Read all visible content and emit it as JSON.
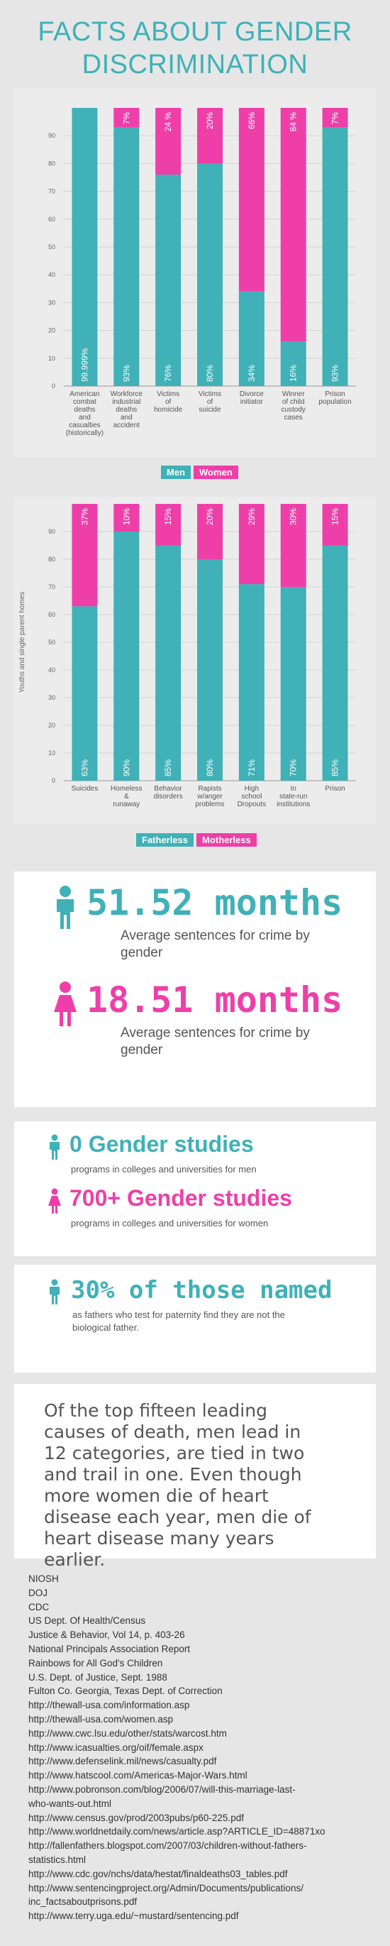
{
  "title_lines": [
    "FACTS ABOUT GENDER",
    "DISCRIMINATION"
  ],
  "colors": {
    "teal": "#3fb1b7",
    "pink": "#ee3fa9",
    "panel": "#ececec"
  },
  "chart_data": [
    {
      "type": "bar",
      "stacked": true,
      "ylim": [
        0,
        100
      ],
      "yticks": [
        0,
        10,
        20,
        30,
        40,
        50,
        60,
        70,
        80,
        90
      ],
      "categories": [
        [
          "American",
          "combat",
          "deaths",
          "and",
          "casualties",
          "(historically)"
        ],
        [
          "Workforce",
          "industrial",
          "deaths",
          "and",
          "accident"
        ],
        [
          "Victims",
          "of",
          "homicide"
        ],
        [
          "Victims",
          "of",
          "suicide"
        ],
        [
          "Divorce",
          "initiator"
        ],
        [
          "Winner",
          "of child",
          "custody",
          "cases"
        ],
        [
          "Prison",
          "population"
        ]
      ],
      "series": [
        {
          "name": "Men",
          "values": [
            99.999,
            93,
            76,
            80,
            34,
            16,
            93
          ],
          "labels": [
            "99.999%",
            "93%",
            "76%",
            "80%",
            "34%",
            "16%",
            "93%"
          ]
        },
        {
          "name": "Women",
          "values": [
            0.001,
            7,
            24,
            20,
            66,
            84,
            7
          ],
          "labels": [
            "",
            "7%",
            "24 %",
            "20%",
            "66%",
            "84 %",
            "7%"
          ]
        }
      ],
      "legend": [
        "Men",
        "Women"
      ]
    },
    {
      "type": "bar",
      "stacked": true,
      "ylim": [
        0,
        100
      ],
      "yticks": [
        0,
        10,
        20,
        30,
        40,
        50,
        60,
        70,
        80,
        90
      ],
      "ylabel": "Youths and single parent homes",
      "categories": [
        [
          "Suicides"
        ],
        [
          "Homeless",
          "&",
          "runaway"
        ],
        [
          "Behavior",
          "disorders"
        ],
        [
          "Rapists",
          "w/anger",
          "problems"
        ],
        [
          "High",
          "school",
          "Dropouts"
        ],
        [
          "In",
          "state-run",
          "institutions"
        ],
        [
          "Prison"
        ]
      ],
      "series": [
        {
          "name": "Fatherless",
          "values": [
            63,
            90,
            85,
            80,
            71,
            70,
            85
          ],
          "labels": [
            "63%",
            "90%",
            "85%",
            "80%",
            "71%",
            "70%",
            "85%"
          ]
        },
        {
          "name": "Motherless",
          "values": [
            37,
            10,
            15,
            20,
            29,
            30,
            15
          ],
          "labels": [
            "37%",
            "10%",
            "15%",
            "20%",
            "29%",
            "30%",
            "15%"
          ]
        }
      ],
      "legend": [
        "Fatherless",
        "Motherless"
      ]
    }
  ],
  "sentences": {
    "men_value": "51.52 months",
    "men_caption": "Average sentences for crime by gender",
    "women_value": "18.51 months",
    "women_caption": "Average sentences for crime by gender"
  },
  "studies": {
    "men_value": "0 Gender studies",
    "men_caption": "programs in colleges and universities for men",
    "women_value": "700+ Gender studies",
    "women_caption": "programs in colleges and universities for women"
  },
  "paternity": {
    "value": "30% of those named",
    "caption_lines": [
      "as fathers who test for paternity find they are not the",
      "biological father."
    ]
  },
  "quote_lines": [
    "Of the top fifteen leading",
    "causes of death, men lead in",
    "12 categories, are tied in two",
    "and trail in one.  Even though",
    "more women die of heart",
    "disease each year, men die of",
    "heart disease many years earlier."
  ],
  "sources": [
    "NIOSH",
    "DOJ",
    "CDC",
    "US Dept. Of Health/Census",
    "Justice & Behavior, Vol 14, p. 403-26",
    "National Principals Association Report",
    "Rainbows for All God's Children",
    "U.S. Dept. of Justice, Sept. 1988",
    "Fulton Co. Georgia, Texas Dept. of Correction",
    "http://thewall-usa.com/information.asp",
    "http://thewall-usa.com/women.asp",
    "http://www.cwc.lsu.edu/other/stats/warcost.htm",
    "http://www.icasualties.org/oif/female.aspx",
    "http://www.defenselink.mil/news/casualty.pdf",
    "http://www.hatscool.com/Americas-Major-Wars.html",
    "http://www.pobronson.com/blog/2006/07/will-this-marriage-last-",
    "who-wants-out.html",
    "http://www.census.gov/prod/2003pubs/p60-225.pdf",
    "http://www.worldnetdaily.com/news/article.asp?ARTICLE_ID=48871xo",
    "http://fallenfathers.blogspot.com/2007/03/children-without-fathers-",
    "statistics.html",
    "http://www.cdc.gov/nchs/data/hestat/finaldeaths03_tables.pdf",
    "http://www.sentencingproject.org/Admin/Documents/publications/",
    "inc_factsaboutprisons.pdf",
    "http://www.terry.uga.edu/~mustard/sentencing.pdf"
  ]
}
